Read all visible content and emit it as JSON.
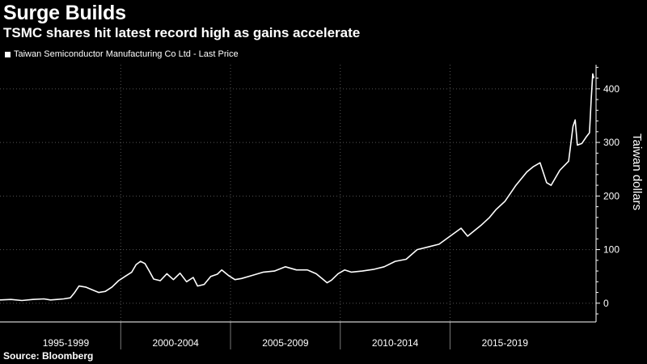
{
  "header": {
    "title": "Surge Builds",
    "subtitle": "TSMC shares hit latest record high as gains accelerate"
  },
  "footer": {
    "source": "Source: Bloomberg"
  },
  "colors": {
    "background": "#000000",
    "line": "#ffffff",
    "grid": "#555555"
  },
  "chart_data": {
    "type": "line",
    "title": "Surge Builds",
    "subtitle": "TSMC shares hit latest record high as gains accelerate",
    "ylabel": "Taiwan dollars",
    "xlabel": "",
    "x_tick_labels": [
      "1995-1999",
      "2000-2004",
      "2005-2009",
      "2010-2014",
      "2015-2019"
    ],
    "y_ticks": [
      0,
      100,
      200,
      300,
      400
    ],
    "ylim": [
      -35,
      445
    ],
    "xlim": [
      1994.0,
      2021.15
    ],
    "grid": true,
    "legend_position": "top-left",
    "series": [
      {
        "name": "Taiwan Semiconductor Manufacturing Co Ltd - Last Price",
        "x": [
          1994.0,
          1994.5,
          1995.0,
          1995.5,
          1996.0,
          1996.3,
          1996.6,
          1996.9,
          1997.2,
          1997.4,
          1997.6,
          1997.9,
          1998.2,
          1998.5,
          1998.8,
          1999.1,
          1999.4,
          1999.7,
          2000.0,
          2000.2,
          2000.4,
          2000.6,
          2000.8,
          2001.0,
          2001.3,
          2001.6,
          2001.9,
          2002.2,
          2002.5,
          2002.8,
          2003.0,
          2003.3,
          2003.6,
          2003.9,
          2004.1,
          2004.4,
          2004.7,
          2005.0,
          2005.5,
          2006.0,
          2006.5,
          2007.0,
          2007.5,
          2008.0,
          2008.4,
          2008.7,
          2008.9,
          2009.1,
          2009.4,
          2009.7,
          2010.0,
          2010.5,
          2011.0,
          2011.5,
          2012.0,
          2012.5,
          2013.0,
          2013.5,
          2014.0,
          2014.5,
          2015.0,
          2015.3,
          2015.6,
          2015.9,
          2016.3,
          2016.6,
          2017.0,
          2017.5,
          2018.0,
          2018.3,
          2018.6,
          2018.9,
          2019.1,
          2019.5,
          2019.9,
          2020.1,
          2020.2,
          2020.3,
          2020.5,
          2020.7,
          2020.85,
          2020.93,
          2021.0,
          2021.05
        ],
        "values": [
          6,
          7,
          5,
          7,
          8,
          6,
          7,
          8,
          10,
          20,
          32,
          30,
          25,
          20,
          22,
          30,
          42,
          50,
          58,
          72,
          78,
          74,
          60,
          45,
          42,
          55,
          44,
          56,
          40,
          48,
          32,
          35,
          50,
          54,
          62,
          52,
          44,
          46,
          52,
          58,
          60,
          68,
          62,
          62,
          55,
          45,
          38,
          43,
          55,
          62,
          58,
          60,
          63,
          68,
          78,
          82,
          100,
          105,
          110,
          125,
          140,
          125,
          135,
          145,
          160,
          175,
          190,
          220,
          245,
          255,
          262,
          225,
          220,
          248,
          265,
          330,
          342,
          295,
          298,
          310,
          318,
          380,
          428,
          420
        ]
      }
    ]
  }
}
